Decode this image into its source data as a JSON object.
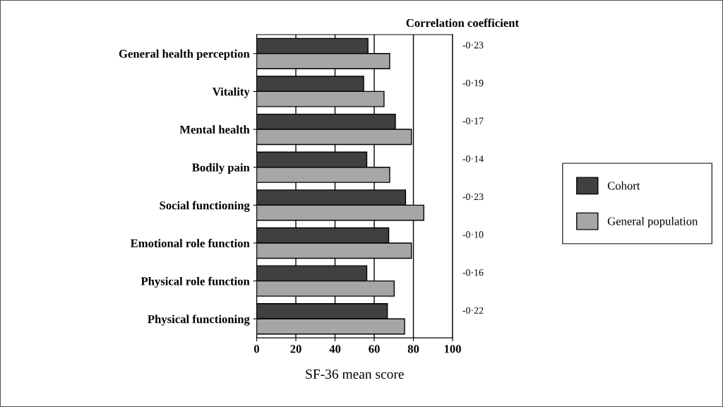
{
  "chart_data": {
    "type": "bar",
    "orientation": "horizontal",
    "xlabel": "SF-36 mean score",
    "categories": [
      "General health perception",
      "Vitality",
      "Mental health",
      "Bodily pain",
      "Social functioning",
      "Emotional role function",
      "Physical role function",
      "Physical functioning"
    ],
    "series": [
      {
        "name": "Cohort",
        "color": "#404040",
        "values": [
          56.8,
          54.6,
          70.8,
          56.2,
          76,
          67.4,
          56.2,
          66.7
        ]
      },
      {
        "name": "General population",
        "color": "#a6a6a6",
        "values": [
          67.9,
          65,
          79,
          67.9,
          85.3,
          79,
          70.2,
          75.5
        ]
      }
    ],
    "xlim": [
      0,
      100
    ],
    "xticks": [
      0,
      20,
      40,
      60,
      80,
      100
    ],
    "grid": "x",
    "legend": "right",
    "annotations": [
      "Correlation coefficient",
      "-0·23",
      "-0·19",
      "-0·17",
      "-0·14",
      "-0·23",
      "-0·10",
      "-0·16",
      "-0·22"
    ]
  }
}
